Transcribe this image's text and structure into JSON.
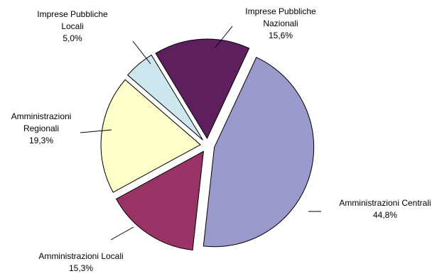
{
  "chart_data": {
    "type": "pie",
    "title": "",
    "slices": [
      {
        "label_lines": [
          "Amministrazioni Centrali"
        ],
        "value_label": "44,8%",
        "value": 44.8,
        "color": "#9999cc"
      },
      {
        "label_lines": [
          "Amministrazioni Locali"
        ],
        "value_label": "15,3%",
        "value": 15.3,
        "color": "#993366"
      },
      {
        "label_lines": [
          "Amministrazioni",
          "Regionali"
        ],
        "value_label": "19,3%",
        "value": 19.3,
        "color": "#ffffcc"
      },
      {
        "label_lines": [
          "Imprese Pubbliche",
          "Locali"
        ],
        "value_label": "5,0%",
        "value": 5.0,
        "color": "#cce8ee"
      },
      {
        "label_lines": [
          "Imprese Pubbliche",
          "Nazionali"
        ],
        "value_label": "15,6%",
        "value": 15.6,
        "color": "#5e1f5e"
      }
    ]
  }
}
